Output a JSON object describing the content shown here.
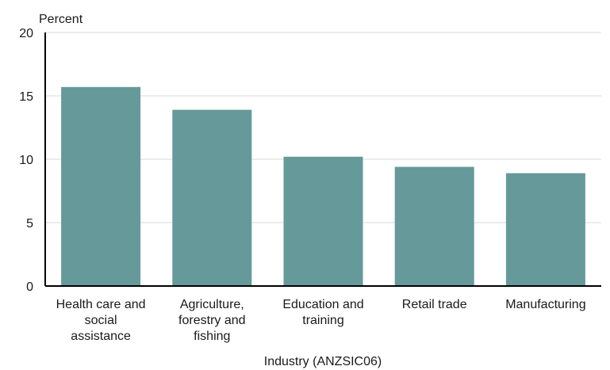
{
  "chart_data": {
    "type": "bar",
    "title": "",
    "ylabel": "Percent",
    "xlabel": "Industry (ANZSIC06)",
    "categories": [
      [
        "Health care and",
        "social",
        "assistance"
      ],
      [
        "Agriculture,",
        "forestry and",
        "fishing"
      ],
      [
        "Education and",
        "training"
      ],
      [
        "Retail trade"
      ],
      [
        "Manufacturing"
      ]
    ],
    "values": [
      15.7,
      13.9,
      10.2,
      9.4,
      8.9
    ],
    "ylim": [
      0,
      20
    ],
    "yticks": [
      0,
      5,
      10,
      15,
      20
    ],
    "grid": true,
    "colors": {
      "bar": "#669999",
      "grid": "#d9d9d9",
      "axis": "#000000"
    }
  }
}
